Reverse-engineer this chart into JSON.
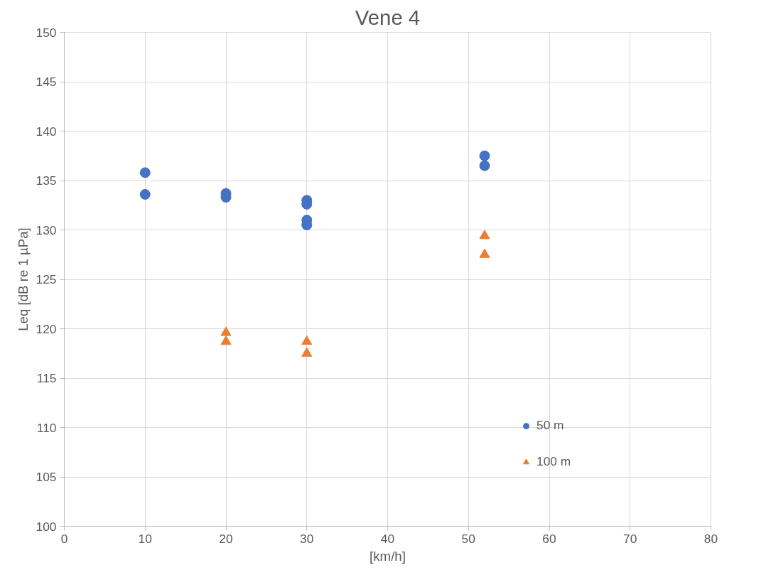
{
  "chart_data": {
    "type": "scatter",
    "title": "Vene 4",
    "xlabel": "[km/h]",
    "ylabel": "Leq [dB re 1 µPa]",
    "xlim": [
      0,
      80
    ],
    "xticks": [
      0,
      10,
      20,
      30,
      40,
      50,
      60,
      70,
      80
    ],
    "ylim": [
      100,
      150
    ],
    "yticks": [
      100,
      105,
      110,
      115,
      120,
      125,
      130,
      135,
      140,
      145,
      150
    ],
    "grid": true,
    "legend": "right",
    "series": [
      {
        "name": "50 m",
        "color": "#4472c4",
        "marker": "circle",
        "x": [
          10,
          10,
          20,
          20,
          30,
          30,
          30,
          30,
          52,
          52
        ],
        "values": [
          135.8,
          133.6,
          133.7,
          133.3,
          133.0,
          132.6,
          131.0,
          130.5,
          137.5,
          136.5
        ]
      },
      {
        "name": "100 m",
        "color": "#ed7d31",
        "marker": "triangle",
        "x": [
          20,
          20,
          30,
          30,
          52,
          52
        ],
        "values": [
          119.6,
          118.7,
          118.7,
          117.5,
          129.4,
          127.5
        ]
      }
    ]
  }
}
